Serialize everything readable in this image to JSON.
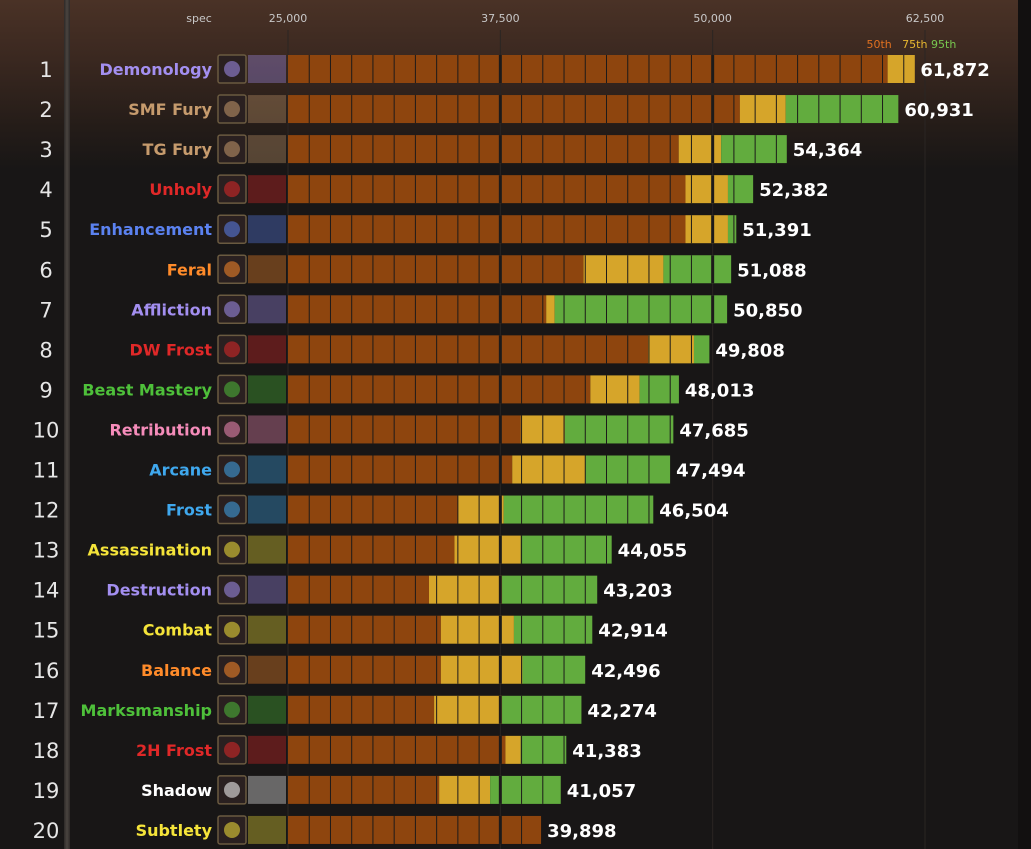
{
  "chart_data": {
    "type": "bar",
    "header_label": "spec",
    "x_ticks": [
      25000,
      37500,
      50000,
      62500
    ],
    "x_tick_labels": [
      "25,000",
      "37,500",
      "50,000",
      "62,500"
    ],
    "xlim": [
      25000,
      68000
    ],
    "percentile_labels": [
      {
        "label": "50th",
        "color": "#e07020",
        "value": 59800
      },
      {
        "label": "75th",
        "color": "#e8b830",
        "value": 61900
      },
      {
        "label": "95th",
        "color": "#78c850",
        "value": 63600
      }
    ],
    "colors": {
      "p50": "#8e450e",
      "p75": "#d6a52a",
      "p95": "#62ac3e",
      "divider": "#1c1a1a"
    },
    "rows": [
      {
        "rank": "1",
        "spec": "Demonology",
        "color": "#a38ff0",
        "icon": "demonology-icon",
        "p50": 60300,
        "p75": 61900,
        "value": 61872,
        "value_label": "61,872"
      },
      {
        "rank": "2",
        "spec": "SMF Fury",
        "color": "#c69b6d",
        "icon": "smf-fury-icon",
        "p50": 51600,
        "p75": 54300,
        "value": 60931,
        "value_label": "60,931"
      },
      {
        "rank": "3",
        "spec": "TG Fury",
        "color": "#c69b6d",
        "icon": "tg-fury-icon",
        "p50": 48000,
        "p75": 50500,
        "value": 54364,
        "value_label": "54,364"
      },
      {
        "rank": "4",
        "spec": "Unholy",
        "color": "#e02828",
        "icon": "unholy-icon",
        "p50": 48400,
        "p75": 50900,
        "value": 52382,
        "value_label": "52,382"
      },
      {
        "rank": "5",
        "spec": "Enhancement",
        "color": "#5b82f0",
        "icon": "enhancement-icon",
        "p50": 48400,
        "p75": 50900,
        "value": 51391,
        "value_label": "51,391"
      },
      {
        "rank": "6",
        "spec": "Feral",
        "color": "#ff8b2a",
        "icon": "feral-icon",
        "p50": 42400,
        "p75": 47100,
        "value": 51088,
        "value_label": "51,088"
      },
      {
        "rank": "7",
        "spec": "Affliction",
        "color": "#a38ff0",
        "icon": "affliction-icon",
        "p50": 40200,
        "p75": 40700,
        "value": 50850,
        "value_label": "50,850"
      },
      {
        "rank": "8",
        "spec": "DW Frost",
        "color": "#e02828",
        "icon": "dw-frost-icon",
        "p50": 46200,
        "p75": 48900,
        "value": 49808,
        "value_label": "49,808"
      },
      {
        "rank": "9",
        "spec": "Beast Mastery",
        "color": "#4ec03a",
        "icon": "beast-mastery-icon",
        "p50": 42800,
        "p75": 45700,
        "value": 48013,
        "value_label": "48,013"
      },
      {
        "rank": "10",
        "spec": "Retribution",
        "color": "#f58cba",
        "icon": "retribution-icon",
        "p50": 38700,
        "p75": 41300,
        "value": 47685,
        "value_label": "47,685"
      },
      {
        "rank": "11",
        "spec": "Arcane",
        "color": "#3fa8ee",
        "icon": "arcane-icon",
        "p50": 38200,
        "p75": 42500,
        "value": 47494,
        "value_label": "47,494"
      },
      {
        "rank": "12",
        "spec": "Frost",
        "color": "#3fa8ee",
        "icon": "frost-icon",
        "p50": 35000,
        "p75": 37700,
        "value": 46504,
        "value_label": "46,504"
      },
      {
        "rank": "13",
        "spec": "Assassination",
        "color": "#f5e43a",
        "icon": "assassination-icon",
        "p50": 34800,
        "p75": 38700,
        "value": 44055,
        "value_label": "44,055"
      },
      {
        "rank": "14",
        "spec": "Destruction",
        "color": "#a38ff0",
        "icon": "destruction-icon",
        "p50": 33300,
        "p75": 37600,
        "value": 43203,
        "value_label": "43,203"
      },
      {
        "rank": "15",
        "spec": "Combat",
        "color": "#f5e43a",
        "icon": "combat-icon",
        "p50": 34000,
        "p75": 38300,
        "value": 42914,
        "value_label": "42,914"
      },
      {
        "rank": "16",
        "spec": "Balance",
        "color": "#ff8b2a",
        "icon": "balance-icon",
        "p50": 34000,
        "p75": 38800,
        "value": 42496,
        "value_label": "42,496"
      },
      {
        "rank": "17",
        "spec": "Marksmanship",
        "color": "#4ec03a",
        "icon": "marksmanship-icon",
        "p50": 33600,
        "p75": 37600,
        "value": 42274,
        "value_label": "42,274"
      },
      {
        "rank": "18",
        "spec": "2H Frost",
        "color": "#e02828",
        "icon": "2h-frost-icon",
        "p50": 37800,
        "p75": 38700,
        "value": 41383,
        "value_label": "41,383"
      },
      {
        "rank": "19",
        "spec": "Shadow",
        "color": "#ffffff",
        "icon": "shadow-icon",
        "p50": 33900,
        "p75": 36900,
        "value": 41057,
        "value_label": "41,057"
      },
      {
        "rank": "20",
        "spec": "Subtlety",
        "color": "#f5e43a",
        "icon": "subtlety-icon",
        "p50": 39898,
        "p75": 39898,
        "value": 39898,
        "value_label": "39,898"
      }
    ]
  }
}
